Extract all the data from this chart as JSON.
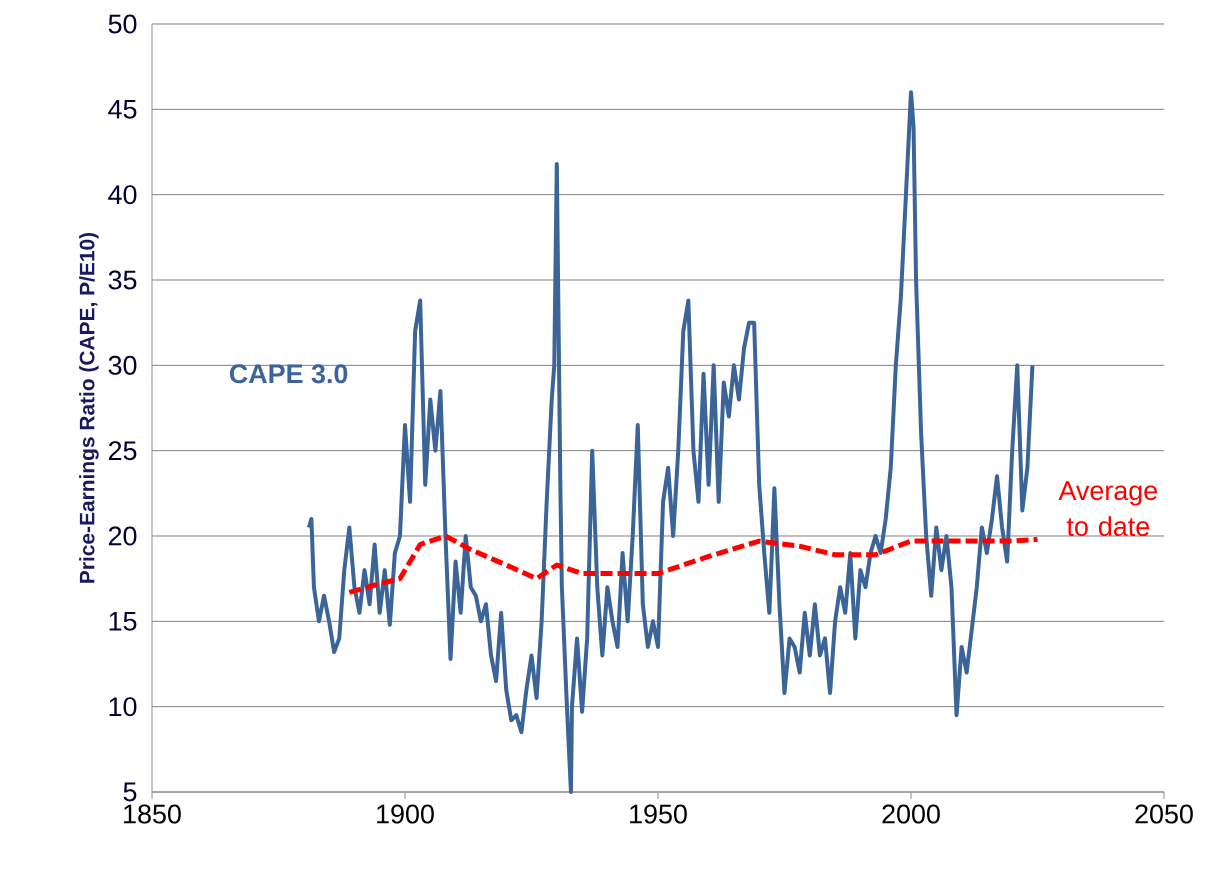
{
  "chart_data": {
    "type": "line",
    "ylabel": "Price-Earnings Ratio (CAPE, P/E10)",
    "xlim": [
      1850,
      2050
    ],
    "ylim": [
      5,
      50
    ],
    "xticks": [
      1850,
      1900,
      1950,
      2000,
      2050
    ],
    "yticks": [
      5,
      10,
      15,
      20,
      25,
      30,
      35,
      40,
      45,
      50
    ],
    "grid": "y",
    "series": [
      {
        "name": "CAPE 3.0",
        "color": "#3b6598",
        "line_style": "solid",
        "x": [
          1881,
          1881.5,
          1882,
          1883,
          1884,
          1885,
          1886,
          1887,
          1888,
          1889,
          1890,
          1891,
          1892,
          1893,
          1894,
          1895,
          1896,
          1897,
          1898,
          1899,
          1900,
          1901,
          1902,
          1903,
          1904,
          1905,
          1906,
          1907,
          1908,
          1909,
          1910,
          1911,
          1912,
          1913,
          1914,
          1915,
          1916,
          1917,
          1918,
          1919,
          1920,
          1921,
          1922,
          1923,
          1924,
          1925,
          1926,
          1927,
          1928,
          1929,
          1929.5,
          1930,
          1930.7,
          1931,
          1932,
          1932.8,
          1933,
          1934,
          1935,
          1936,
          1937,
          1938,
          1939,
          1940,
          1941,
          1942,
          1943,
          1944,
          1945,
          1946,
          1947,
          1948,
          1949,
          1950,
          1951,
          1952,
          1953,
          1954,
          1955,
          1956,
          1957,
          1958,
          1959,
          1960,
          1961,
          1962,
          1963,
          1964,
          1965,
          1966,
          1967,
          1968,
          1969,
          1970,
          1971,
          1972,
          1972.5,
          1973,
          1974,
          1975,
          1976,
          1977,
          1978,
          1979,
          1980,
          1981,
          1982,
          1983,
          1984,
          1985,
          1986,
          1987,
          1988,
          1989,
          1990,
          1991,
          1992,
          1993,
          1994,
          1995,
          1996,
          1997,
          1998,
          1999,
          2000,
          2000.5,
          2001,
          2002,
          2003,
          2004,
          2005,
          2006,
          2007,
          2008,
          2009,
          2010,
          2011,
          2012,
          2013,
          2014,
          2015,
          2016,
          2017,
          2018,
          2019,
          2020,
          2021,
          2022,
          2023,
          2024
        ],
        "values": [
          20.5,
          21,
          17,
          15,
          16.5,
          15,
          13.2,
          14,
          18,
          20.5,
          17,
          15.5,
          18,
          16,
          19.5,
          15.5,
          18,
          14.8,
          19,
          20,
          26.5,
          22,
          32,
          33.8,
          23,
          28,
          25,
          28.5,
          20,
          12.8,
          18.5,
          15.5,
          20,
          17,
          16.5,
          15,
          16,
          13,
          11.5,
          15.5,
          11,
          9.2,
          9.5,
          8.5,
          11,
          13,
          10.5,
          15,
          22,
          28,
          30,
          41.8,
          23,
          17,
          10,
          5,
          10,
          14,
          9.7,
          14,
          25,
          17,
          13,
          17,
          15,
          13.5,
          19,
          15,
          20,
          26.5,
          16,
          13.5,
          15,
          13.5,
          22,
          24,
          20,
          25,
          32,
          33.8,
          25,
          22,
          29.5,
          23,
          30,
          22,
          29,
          27,
          30,
          28,
          31,
          32.5,
          32.5,
          23,
          19,
          15.5,
          19,
          22.8,
          16,
          10.8,
          14,
          13.5,
          12,
          15.5,
          13,
          16,
          13,
          14,
          10.8,
          15,
          17,
          15.5,
          19,
          14,
          18,
          17,
          19,
          20,
          19,
          21,
          24,
          30,
          34,
          40,
          46,
          44,
          35,
          26,
          20,
          16.5,
          20.5,
          18,
          20,
          17,
          9.5,
          13.5,
          12,
          14.5,
          17,
          20.5,
          19,
          21,
          23.5,
          20.5,
          18.5,
          25,
          30,
          21.5,
          24,
          30
        ]
      },
      {
        "name": "Average to date",
        "color": "#ff0000",
        "line_style": "dashed",
        "x": [
          1889,
          1895,
          1899,
          1903,
          1908,
          1913,
          1920,
          1926,
          1930,
          1935,
          1945,
          1950,
          1960,
          1970,
          1978,
          1985,
          1993,
          2000,
          2010,
          2020,
          2025
        ],
        "values": [
          16.7,
          17.2,
          17.5,
          19.5,
          20,
          19.2,
          18.3,
          17.5,
          18.3,
          17.8,
          17.8,
          17.8,
          18.8,
          19.7,
          19.4,
          18.9,
          18.9,
          19.7,
          19.7,
          19.7,
          19.8
        ]
      }
    ]
  }
}
